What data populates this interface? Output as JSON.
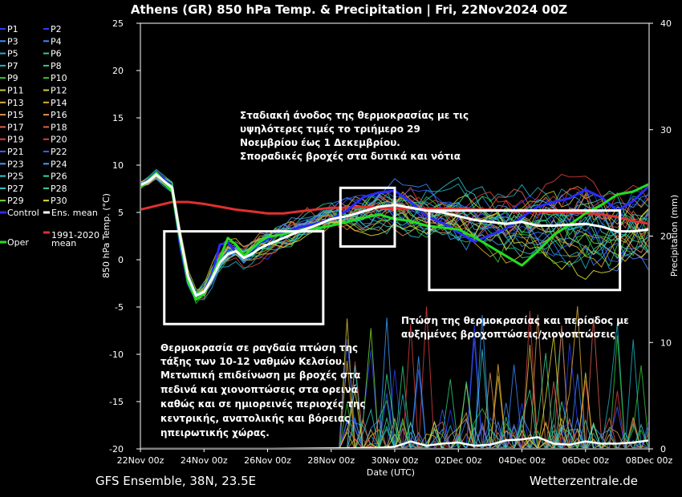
{
  "title": "Athens  (GR)  850 hPa Temp. & Precipitation | Fri, 22Nov2024 00Z",
  "footer": {
    "left": "GFS Ensemble, 38N, 23.5E",
    "right": "Wetterzentrale.de"
  },
  "colors": {
    "background": "#000000",
    "control": "#2a2aff",
    "ens_mean": "#ffffff",
    "oper": "#22dd22",
    "climate": "#e03030",
    "boxes": "#ffffff"
  },
  "legend": [
    {
      "label": "P1",
      "color": "#2a3cff"
    },
    {
      "label": "P2",
      "color": "#2a3cff"
    },
    {
      "label": "P3",
      "color": "#3a8cff"
    },
    {
      "label": "P4",
      "color": "#3a8cff"
    },
    {
      "label": "P5",
      "color": "#21b3c8"
    },
    {
      "label": "P6",
      "color": "#2fd07a"
    },
    {
      "label": "P7",
      "color": "#21b3c8"
    },
    {
      "label": "P8",
      "color": "#2fd07a"
    },
    {
      "label": "P9",
      "color": "#33cc33"
    },
    {
      "label": "P10",
      "color": "#33cc33"
    },
    {
      "label": "P11",
      "color": "#c8c832"
    },
    {
      "label": "P12",
      "color": "#d8c840"
    },
    {
      "label": "P13",
      "color": "#e0b030"
    },
    {
      "label": "P14",
      "color": "#e0b030"
    },
    {
      "label": "P15",
      "color": "#e09050"
    },
    {
      "label": "P16",
      "color": "#e09050"
    },
    {
      "label": "P17",
      "color": "#e06050"
    },
    {
      "label": "P18",
      "color": "#e06050"
    },
    {
      "label": "P19",
      "color": "#e04040"
    },
    {
      "label": "P20",
      "color": "#e04040"
    },
    {
      "label": "P21",
      "color": "#3a5cff"
    },
    {
      "label": "P22",
      "color": "#3a5cff"
    },
    {
      "label": "P23",
      "color": "#3aa0ff"
    },
    {
      "label": "P24",
      "color": "#3aa0ff"
    },
    {
      "label": "P25",
      "color": "#33c8c8"
    },
    {
      "label": "P26",
      "color": "#33d89a"
    },
    {
      "label": "P27",
      "color": "#33c8c8"
    },
    {
      "label": "P28",
      "color": "#33d89a"
    },
    {
      "label": "P29",
      "color": "#77e033"
    },
    {
      "label": "P30",
      "color": "#e0e033"
    },
    {
      "label": "Control",
      "color": "#2a2aff"
    },
    {
      "label": "Ens. mean",
      "color": "#ffffff"
    },
    {
      "label": "Oper",
      "color": "#22dd22"
    },
    {
      "label": "1991-2020 mean",
      "color": "#e03030"
    }
  ],
  "annotations": {
    "top": [
      "Σταδιακή άνοδος της θερμοκρασίας με τις",
      "υψηλότερες τιμές το τριήμερο 29",
      "Νοεμβρίου έως 1 Δεκεμβρίου.",
      "Σποραδικές βροχές στα δυτικά και νότια"
    ],
    "right": [
      "Πτώση της θερμοκρασίας και περίοδος με",
      "αυξημένες βροχοπτώσεις/χιονοπτώσεις"
    ],
    "left": [
      "Θερμοκρασία σε ραγδαία πτώση της",
      "τάξης των 10-12 ναθμών Κελσίου.",
      "Μετωπική επιδείνωση με βροχές στα",
      "πεδινά και χιονοπτώσεις στα ορεινά",
      "καθώς και σε ημιορεινές περιοχές της",
      "κεντρικής, ανατολικής και βόρειας",
      "ηπειρωτικής χώρας."
    ]
  },
  "chart_data": {
    "type": "line",
    "xlabel": "Date (UTC)",
    "ylabel": "850 hPa Temp. (°C)",
    "y2label": "Precipitation (mm)",
    "xlim_hours": [
      0,
      384
    ],
    "ylim": [
      -20,
      25
    ],
    "y2lim": [
      0,
      40
    ],
    "x_ticks": [
      {
        "hour": 0,
        "label": "22Nov 00z"
      },
      {
        "hour": 48,
        "label": "24Nov 00z"
      },
      {
        "hour": 96,
        "label": "26Nov 00z"
      },
      {
        "hour": 144,
        "label": "28Nov 00z"
      },
      {
        "hour": 192,
        "label": "30Nov 00z"
      },
      {
        "hour": 240,
        "label": "02Dec 00z"
      },
      {
        "hour": 288,
        "label": "04Dec 00z"
      },
      {
        "hour": 336,
        "label": "06Dec 00z"
      },
      {
        "hour": 384,
        "label": "08Dec 00z"
      }
    ],
    "y_ticks": [
      25,
      20,
      15,
      10,
      5,
      0,
      -5,
      -10,
      -15,
      -20
    ],
    "y2_ticks": [
      40,
      30,
      20,
      10,
      0
    ],
    "grid": false,
    "highlight_boxes": [
      {
        "x_hours": [
          18,
          138
        ],
        "y": [
          -6.8,
          3.0
        ]
      },
      {
        "x_hours": [
          151,
          192
        ],
        "y": [
          1.4,
          7.6
        ]
      },
      {
        "x_hours": [
          218,
          362
        ],
        "y": [
          -3.2,
          5.2
        ]
      }
    ],
    "series": [
      {
        "name": "1991-2020 mean",
        "kind": "climate",
        "x": [
          0,
          12,
          24,
          36,
          48,
          60,
          72,
          84,
          96,
          108,
          120,
          132,
          144,
          156,
          168,
          180,
          192,
          204,
          216,
          228,
          240,
          252,
          264,
          276,
          288,
          300,
          312,
          324,
          336,
          348,
          360,
          372,
          384
        ],
        "y": [
          5.3,
          5.7,
          6.1,
          6.1,
          5.9,
          5.6,
          5.3,
          5.1,
          4.9,
          4.9,
          5.1,
          5.3,
          5.5,
          5.5,
          5.6,
          5.5,
          5.4,
          5.4,
          5.4,
          5.4,
          5.4,
          5.3,
          5.3,
          5.2,
          5.1,
          5.1,
          5.0,
          5.0,
          4.9,
          4.8,
          4.5,
          4.1,
          3.8
        ]
      },
      {
        "name": "Ens. mean",
        "kind": "mean",
        "x": [
          0,
          6,
          12,
          18,
          24,
          30,
          36,
          42,
          48,
          54,
          60,
          66,
          72,
          78,
          84,
          90,
          96,
          108,
          120,
          132,
          144,
          156,
          168,
          180,
          192,
          204,
          216,
          228,
          240,
          252,
          264,
          276,
          288,
          300,
          312,
          324,
          336,
          348,
          360,
          372,
          384
        ],
        "y": [
          7.9,
          8.3,
          9.0,
          8.3,
          7.6,
          2.5,
          -1.8,
          -3.8,
          -3.4,
          -2.0,
          -0.3,
          0.6,
          0.9,
          0.2,
          0.6,
          1.2,
          1.6,
          2.3,
          3.0,
          3.6,
          4.3,
          4.6,
          5.1,
          5.6,
          5.8,
          5.5,
          5.2,
          5.0,
          4.6,
          4.2,
          4.0,
          3.8,
          4.0,
          3.6,
          3.6,
          3.7,
          3.8,
          3.5,
          3.0,
          3.0,
          3.2
        ]
      },
      {
        "name": "Control",
        "kind": "control",
        "x": [
          0,
          6,
          12,
          18,
          24,
          30,
          36,
          42,
          48,
          54,
          60,
          66,
          72,
          78,
          84,
          90,
          96,
          108,
          120,
          132,
          144,
          156,
          168,
          180,
          192,
          204,
          216,
          228,
          240,
          252,
          264,
          276,
          288,
          300,
          312,
          324,
          336,
          348,
          360,
          372,
          384
        ],
        "y": [
          7.8,
          8.5,
          9.3,
          8.5,
          7.4,
          1.5,
          -2.6,
          -4.2,
          -3.4,
          -1.5,
          1.6,
          1.8,
          0.8,
          0.3,
          1.0,
          1.8,
          2.2,
          2.9,
          3.4,
          3.8,
          4.3,
          5.2,
          6.6,
          7.1,
          7.3,
          6.1,
          4.6,
          3.9,
          2.9,
          1.9,
          2.6,
          3.3,
          4.5,
          5.6,
          6.1,
          6.5,
          7.4,
          6.6,
          5.2,
          6.2,
          7.8
        ]
      },
      {
        "name": "Oper",
        "kind": "oper",
        "x": [
          0,
          6,
          12,
          18,
          24,
          30,
          36,
          42,
          48,
          54,
          60,
          66,
          72,
          78,
          84,
          90,
          96,
          108,
          120,
          132,
          144,
          156,
          168,
          180,
          192,
          204,
          216,
          228,
          240,
          252,
          264,
          276,
          288,
          300,
          312,
          324,
          336,
          348,
          360,
          372,
          384
        ],
        "y": [
          7.6,
          8.4,
          9.2,
          8.2,
          7.2,
          2.1,
          -2.4,
          -4.2,
          -3.6,
          -1.8,
          0.2,
          2.3,
          1.6,
          0.4,
          1.1,
          1.9,
          2.4,
          2.7,
          3.1,
          3.3,
          3.6,
          4.0,
          4.4,
          4.8,
          4.3,
          4.1,
          3.6,
          3.4,
          3.2,
          2.4,
          1.4,
          0.4,
          -0.6,
          0.9,
          2.6,
          3.7,
          4.9,
          5.8,
          6.9,
          7.2,
          8.0
        ]
      }
    ],
    "precip_mean": {
      "x": [
        0,
        100,
        180,
        192,
        204,
        216,
        228,
        240,
        252,
        264,
        276,
        288,
        300,
        312,
        324,
        336,
        348,
        360,
        372,
        384
      ],
      "y": [
        0,
        0,
        0.1,
        0.2,
        0.7,
        0.3,
        0.5,
        0.6,
        0.3,
        0.4,
        0.8,
        0.9,
        1.1,
        0.5,
        0.4,
        0.7,
        0.5,
        0.5,
        0.6,
        0.8
      ]
    }
  }
}
